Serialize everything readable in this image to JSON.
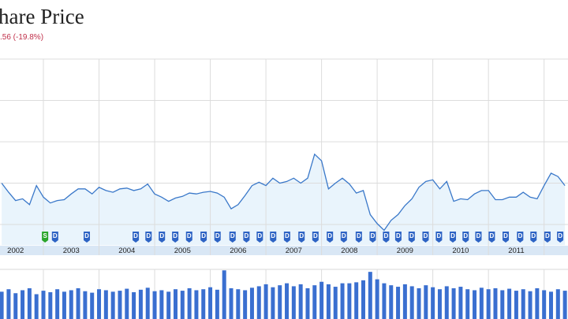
{
  "chart_data": {
    "type": "line",
    "title": "hare Price",
    "subtitle": ".56 (-19.8%)",
    "color": "#3a78c9",
    "area_color": "#e9f4fc",
    "grid": true,
    "xlim": [
      2002.22,
      2012.43
    ],
    "xticks": [
      2003,
      2004,
      2005,
      2006,
      2007,
      2008,
      2009,
      2010,
      2011,
      2012
    ],
    "year_labels": [
      {
        "value": 2002.5,
        "label": "2002"
      },
      {
        "value": 2003.5,
        "label": "2003"
      },
      {
        "value": 2004.5,
        "label": "2004"
      },
      {
        "value": 2005.5,
        "label": "2005"
      },
      {
        "value": 2006.5,
        "label": "2006"
      },
      {
        "value": 2007.5,
        "label": "2007"
      },
      {
        "value": 2008.5,
        "label": "2008"
      },
      {
        "value": 2009.5,
        "label": "2009"
      },
      {
        "value": 2010.5,
        "label": "2010"
      },
      {
        "value": 2011.5,
        "label": "2011"
      },
      {
        "value": 2012.5,
        "label": "20"
      }
    ],
    "ylim": [
      25,
      250
    ],
    "yticks": [
      50,
      100,
      150,
      200,
      250
    ],
    "x": [
      2002.25,
      2002.375,
      2002.5,
      2002.625,
      2002.75,
      2002.875,
      2003,
      2003.125,
      2003.25,
      2003.375,
      2003.5,
      2003.625,
      2003.75,
      2003.875,
      2004,
      2004.125,
      2004.25,
      2004.375,
      2004.5,
      2004.625,
      2004.75,
      2004.875,
      2005,
      2005.125,
      2005.25,
      2005.375,
      2005.5,
      2005.625,
      2005.75,
      2005.875,
      2006,
      2006.125,
      2006.25,
      2006.375,
      2006.5,
      2006.625,
      2006.75,
      2006.875,
      2007,
      2007.125,
      2007.25,
      2007.375,
      2007.5,
      2007.625,
      2007.75,
      2007.875,
      2008,
      2008.125,
      2008.25,
      2008.375,
      2008.5,
      2008.625,
      2008.75,
      2008.875,
      2009,
      2009.125,
      2009.25,
      2009.375,
      2009.5,
      2009.625,
      2009.75,
      2009.875,
      2010,
      2010.125,
      2010.25,
      2010.375,
      2010.5,
      2010.625,
      2010.75,
      2010.875,
      2011,
      2011.125,
      2011.25,
      2011.375,
      2011.5,
      2011.625,
      2011.75,
      2011.875,
      2012,
      2012.125,
      2012.25,
      2012.375
    ],
    "values": [
      100,
      89,
      79,
      81,
      74,
      97,
      83,
      76,
      79,
      80,
      87,
      93,
      93,
      87,
      95,
      91,
      89,
      93,
      94,
      91,
      93,
      99,
      87,
      83,
      78,
      82,
      84,
      88,
      87,
      89,
      90,
      88,
      83,
      69,
      74,
      85,
      97,
      101,
      97,
      106,
      100,
      102,
      106,
      100,
      106,
      135,
      127,
      93,
      100,
      106,
      99,
      88,
      91,
      62,
      51,
      43,
      55,
      62,
      73,
      81,
      95,
      102,
      104,
      93,
      102,
      78,
      81,
      80,
      87,
      91,
      91,
      80,
      80,
      83,
      83,
      89,
      83,
      81,
      97,
      112,
      108,
      97
    ],
    "volume_color": "#3a6fd0",
    "volume_lim": [
      0,
      100
    ],
    "volume": [
      55,
      60,
      52,
      58,
      62,
      50,
      57,
      54,
      60,
      55,
      58,
      62,
      56,
      53,
      60,
      58,
      55,
      57,
      61,
      54,
      59,
      63,
      56,
      58,
      55,
      60,
      57,
      62,
      58,
      60,
      64,
      59,
      98,
      62,
      60,
      58,
      63,
      66,
      70,
      64,
      68,
      72,
      66,
      70,
      62,
      68,
      75,
      70,
      65,
      72,
      72,
      74,
      78,
      95,
      80,
      72,
      68,
      65,
      70,
      66,
      62,
      68,
      64,
      60,
      66,
      62,
      65,
      60,
      58,
      63,
      60,
      62,
      58,
      61,
      57,
      60,
      56,
      62,
      58,
      55,
      60,
      57
    ],
    "events": [
      {
        "label": "S",
        "x": 2003.03,
        "color": "#2aa52a"
      },
      {
        "label": "D",
        "x": 2003.21,
        "color": "#2d63c4"
      },
      {
        "label": "D",
        "x": 2003.78,
        "color": "#2d63c4"
      },
      {
        "label": "D",
        "x": 2004.66,
        "color": "#2d63c4"
      },
      {
        "label": "D",
        "x": 2004.89,
        "color": "#2d63c4"
      },
      {
        "label": "D",
        "x": 2005.13,
        "color": "#2d63c4"
      },
      {
        "label": "D",
        "x": 2005.37,
        "color": "#2d63c4"
      },
      {
        "label": "D",
        "x": 2005.62,
        "color": "#2d63c4"
      },
      {
        "label": "D",
        "x": 2005.88,
        "color": "#2d63c4"
      },
      {
        "label": "D",
        "x": 2006.13,
        "color": "#2d63c4"
      },
      {
        "label": "D",
        "x": 2006.4,
        "color": "#2d63c4"
      },
      {
        "label": "D",
        "x": 2006.65,
        "color": "#2d63c4"
      },
      {
        "label": "D",
        "x": 2006.89,
        "color": "#2d63c4"
      },
      {
        "label": "D",
        "x": 2007.13,
        "color": "#2d63c4"
      },
      {
        "label": "D",
        "x": 2007.38,
        "color": "#2d63c4"
      },
      {
        "label": "D",
        "x": 2007.64,
        "color": "#2d63c4"
      },
      {
        "label": "D",
        "x": 2007.89,
        "color": "#2d63c4"
      },
      {
        "label": "D",
        "x": 2008.15,
        "color": "#2d63c4"
      },
      {
        "label": "D",
        "x": 2008.4,
        "color": "#2d63c4"
      },
      {
        "label": "D",
        "x": 2008.67,
        "color": "#2d63c4"
      },
      {
        "label": "D",
        "x": 2008.92,
        "color": "#2d63c4"
      },
      {
        "label": "D",
        "x": 2009.16,
        "color": "#2d63c4"
      },
      {
        "label": "D",
        "x": 2009.38,
        "color": "#2d63c4"
      },
      {
        "label": "D",
        "x": 2009.62,
        "color": "#2d63c4"
      },
      {
        "label": "D",
        "x": 2009.87,
        "color": "#2d63c4"
      },
      {
        "label": "D",
        "x": 2010.11,
        "color": "#2d63c4"
      },
      {
        "label": "D",
        "x": 2010.36,
        "color": "#2d63c4"
      },
      {
        "label": "D",
        "x": 2010.59,
        "color": "#2d63c4"
      },
      {
        "label": "D",
        "x": 2010.82,
        "color": "#2d63c4"
      },
      {
        "label": "D",
        "x": 2011.06,
        "color": "#2d63c4"
      },
      {
        "label": "D",
        "x": 2011.31,
        "color": "#2d63c4"
      },
      {
        "label": "D",
        "x": 2011.57,
        "color": "#2d63c4"
      },
      {
        "label": "D",
        "x": 2011.81,
        "color": "#2d63c4"
      },
      {
        "label": "D",
        "x": 2012.06,
        "color": "#2d63c4"
      },
      {
        "label": "D",
        "x": 2012.29,
        "color": "#2d63c4"
      }
    ]
  }
}
